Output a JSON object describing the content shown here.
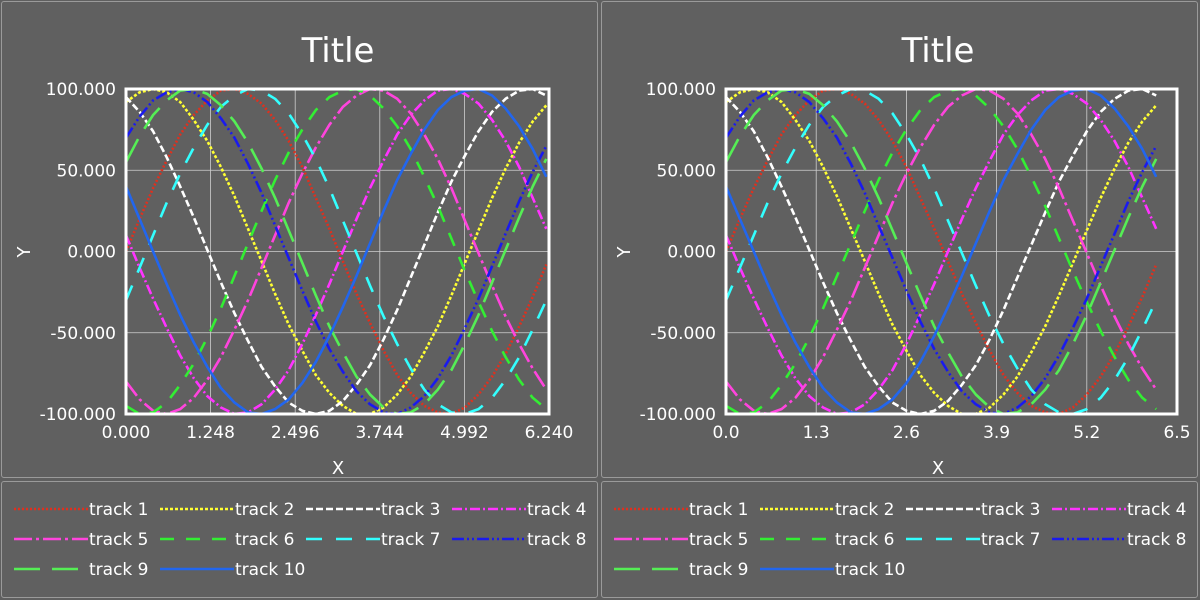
{
  "colors": {
    "background": "#606060",
    "panel_border": "#9a9a9a",
    "axis": "#ffffff",
    "grid": "#cfcfcf",
    "text": "#ffffff"
  },
  "chart_data": [
    {
      "type": "line",
      "title": "Title",
      "xlabel": "X",
      "ylabel": "Y",
      "xlim": [
        0,
        6.24
      ],
      "ylim": [
        -100,
        100
      ],
      "xticks": [
        "0.000",
        "1.248",
        "2.496",
        "3.744",
        "4.992",
        "6.240"
      ],
      "yticks": [
        "-100.000",
        "-50.000",
        "0.000",
        "50.000",
        "100.000"
      ],
      "xtick_values": [
        0,
        1.248,
        2.496,
        3.744,
        4.992,
        6.24
      ],
      "ytick_values": [
        -100,
        -50,
        0,
        50,
        100
      ],
      "grid": true,
      "legend_position": "bottom",
      "x": [
        0,
        0.2,
        0.4,
        0.6,
        0.8,
        1.0,
        1.2,
        1.4,
        1.6,
        1.8,
        2.0,
        2.2,
        2.4,
        2.6,
        2.8,
        3.0,
        3.2,
        3.4,
        3.6,
        3.8,
        4.0,
        4.2,
        4.4,
        4.6,
        4.8,
        5.0,
        5.2,
        5.4,
        5.6,
        5.8,
        6.0,
        6.2
      ],
      "series": [
        {
          "name": "track 1",
          "color": "#e0301e",
          "dash": "2,2",
          "values": [
            0,
            20,
            39,
            56,
            72,
            84,
            93,
            99,
            100,
            97,
            91,
            81,
            68,
            52,
            33,
            14,
            -6,
            -26,
            -44,
            -61,
            -76,
            -87,
            -95,
            -99,
            -100,
            -96,
            -88,
            -77,
            -63,
            -46,
            -28,
            -8
          ]
        },
        {
          "name": "track 2",
          "color": "#ffff33",
          "dash": "3,2",
          "values": [
            92,
            98,
            100,
            98,
            92,
            81,
            68,
            52,
            34,
            14,
            -6,
            -26,
            -45,
            -61,
            -76,
            -87,
            -95,
            -100,
            -100,
            -96,
            -88,
            -77,
            -62,
            -46,
            -27,
            -7,
            13,
            33,
            51,
            67,
            80,
            90
          ]
        },
        {
          "name": "track 3",
          "color": "#ffffff",
          "dash": "7,3",
          "values": [
            95,
            86,
            74,
            58,
            40,
            21,
            1,
            -19,
            -38,
            -55,
            -71,
            -83,
            -93,
            -98,
            -100,
            -98,
            -92,
            -82,
            -70,
            -54,
            -36,
            -16,
            4,
            24,
            43,
            59,
            74,
            86,
            94,
            99,
            100,
            96
          ]
        },
        {
          "name": "track 4",
          "color": "#ff33ff",
          "dash": "10,3,2,3",
          "values": [
            10,
            -10,
            -29,
            -47,
            -64,
            -78,
            -89,
            -96,
            -100,
            -99,
            -94,
            -85,
            -73,
            -57,
            -39,
            -20,
            0,
            20,
            39,
            56,
            72,
            84,
            93,
            99,
            100,
            97,
            91,
            81,
            68,
            52,
            33,
            14
          ]
        },
        {
          "name": "track 5",
          "color": "#ff44dd",
          "dash": "18,4,3,4",
          "values": [
            -80,
            -91,
            -98,
            -100,
            -97,
            -90,
            -79,
            -65,
            -48,
            -30,
            -10,
            10,
            30,
            48,
            64,
            78,
            89,
            96,
            100,
            99,
            94,
            85,
            72,
            57,
            39,
            19,
            -1,
            -21,
            -40,
            -57,
            -72,
            -85
          ]
        },
        {
          "name": "track 6",
          "color": "#33ee33",
          "dash": "14,12",
          "values": [
            -95,
            -100,
            -99,
            -93,
            -82,
            -69,
            -53,
            -35,
            -15,
            5,
            25,
            44,
            61,
            75,
            87,
            95,
            99,
            100,
            96,
            88,
            77,
            63,
            46,
            28,
            8,
            -12,
            -31,
            -49,
            -65,
            -79,
            -90,
            -97
          ]
        },
        {
          "name": "track 7",
          "color": "#33ffff",
          "dash": "16,14",
          "values": [
            -30,
            -10,
            10,
            30,
            48,
            64,
            78,
            89,
            96,
            100,
            99,
            94,
            85,
            72,
            57,
            39,
            19,
            -1,
            -21,
            -40,
            -57,
            -72,
            -85,
            -94,
            -99,
            -100,
            -97,
            -90,
            -79,
            -65,
            -48,
            -30
          ]
        },
        {
          "name": "track 8",
          "color": "#1a1aee",
          "dash": "12,3,2,3,2,3",
          "values": [
            70,
            83,
            93,
            98,
            100,
            98,
            92,
            82,
            70,
            54,
            36,
            16,
            -4,
            -24,
            -43,
            -60,
            -74,
            -86,
            -94,
            -99,
            -100,
            -96,
            -89,
            -78,
            -64,
            -47,
            -29,
            -9,
            11,
            31,
            49,
            65
          ]
        },
        {
          "name": "track 9",
          "color": "#55ee55",
          "dash": "26,12",
          "values": [
            55,
            71,
            84,
            93,
            99,
            100,
            97,
            90,
            80,
            67,
            51,
            33,
            13,
            -7,
            -27,
            -46,
            -62,
            -77,
            -88,
            -96,
            -100,
            -99,
            -94,
            -85,
            -73,
            -57,
            -39,
            -19,
            1,
            21,
            40,
            57
          ]
        },
        {
          "name": "track 10",
          "color": "#2266ee",
          "dash": "",
          "values": [
            40,
            20,
            0,
            -20,
            -39,
            -56,
            -71,
            -84,
            -93,
            -99,
            -100,
            -97,
            -91,
            -81,
            -68,
            -52,
            -34,
            -15,
            5,
            25,
            44,
            60,
            75,
            87,
            95,
            99,
            100,
            96,
            88,
            77,
            63,
            46
          ]
        }
      ]
    },
    {
      "type": "line",
      "title": "Title",
      "xlabel": "X",
      "ylabel": "Y",
      "xlim": [
        0,
        6.5
      ],
      "ylim": [
        -100,
        100
      ],
      "xticks": [
        "0.0",
        "1.3",
        "2.6",
        "3.9",
        "5.2",
        "6.5"
      ],
      "yticks": [
        "-100.000",
        "-50.000",
        "0.000",
        "50.000",
        "100.000"
      ],
      "xtick_values": [
        0,
        1.3,
        2.6,
        3.9,
        5.2,
        6.5
      ],
      "ytick_values": [
        -100,
        -50,
        0,
        50,
        100
      ],
      "grid": true,
      "legend_position": "bottom",
      "x": [
        0,
        0.2,
        0.4,
        0.6,
        0.8,
        1.0,
        1.2,
        1.4,
        1.6,
        1.8,
        2.0,
        2.2,
        2.4,
        2.6,
        2.8,
        3.0,
        3.2,
        3.4,
        3.6,
        3.8,
        4.0,
        4.2,
        4.4,
        4.6,
        4.8,
        5.0,
        5.2,
        5.4,
        5.6,
        5.8,
        6.0,
        6.2
      ],
      "series": [
        {
          "name": "track 1",
          "color": "#e0301e",
          "dash": "2,2",
          "values": [
            0,
            20,
            39,
            56,
            72,
            84,
            93,
            99,
            100,
            97,
            91,
            81,
            68,
            52,
            33,
            14,
            -6,
            -26,
            -44,
            -61,
            -76,
            -87,
            -95,
            -99,
            -100,
            -96,
            -88,
            -77,
            -63,
            -46,
            -28,
            -8
          ]
        },
        {
          "name": "track 2",
          "color": "#ffff33",
          "dash": "3,2",
          "values": [
            92,
            98,
            100,
            98,
            92,
            81,
            68,
            52,
            34,
            14,
            -6,
            -26,
            -45,
            -61,
            -76,
            -87,
            -95,
            -100,
            -100,
            -96,
            -88,
            -77,
            -62,
            -46,
            -27,
            -7,
            13,
            33,
            51,
            67,
            80,
            90
          ]
        },
        {
          "name": "track 3",
          "color": "#ffffff",
          "dash": "7,3",
          "values": [
            95,
            86,
            74,
            58,
            40,
            21,
            1,
            -19,
            -38,
            -55,
            -71,
            -83,
            -93,
            -98,
            -100,
            -98,
            -92,
            -82,
            -70,
            -54,
            -36,
            -16,
            4,
            24,
            43,
            59,
            74,
            86,
            94,
            99,
            100,
            96
          ]
        },
        {
          "name": "track 4",
          "color": "#ff33ff",
          "dash": "10,3,2,3",
          "values": [
            10,
            -10,
            -29,
            -47,
            -64,
            -78,
            -89,
            -96,
            -100,
            -99,
            -94,
            -85,
            -73,
            -57,
            -39,
            -20,
            0,
            20,
            39,
            56,
            72,
            84,
            93,
            99,
            100,
            97,
            91,
            81,
            68,
            52,
            33,
            14
          ]
        },
        {
          "name": "track 5",
          "color": "#ff44dd",
          "dash": "18,4,3,4",
          "values": [
            -80,
            -91,
            -98,
            -100,
            -97,
            -90,
            -79,
            -65,
            -48,
            -30,
            -10,
            10,
            30,
            48,
            64,
            78,
            89,
            96,
            100,
            99,
            94,
            85,
            72,
            57,
            39,
            19,
            -1,
            -21,
            -40,
            -57,
            -72,
            -85
          ]
        },
        {
          "name": "track 6",
          "color": "#33ee33",
          "dash": "14,12",
          "values": [
            -95,
            -100,
            -99,
            -93,
            -82,
            -69,
            -53,
            -35,
            -15,
            5,
            25,
            44,
            61,
            75,
            87,
            95,
            99,
            100,
            96,
            88,
            77,
            63,
            46,
            28,
            8,
            -12,
            -31,
            -49,
            -65,
            -79,
            -90,
            -97
          ]
        },
        {
          "name": "track 7",
          "color": "#33ffff",
          "dash": "16,14",
          "values": [
            -30,
            -10,
            10,
            30,
            48,
            64,
            78,
            89,
            96,
            100,
            99,
            94,
            85,
            72,
            57,
            39,
            19,
            -1,
            -21,
            -40,
            -57,
            -72,
            -85,
            -94,
            -99,
            -100,
            -97,
            -90,
            -79,
            -65,
            -48,
            -30
          ]
        },
        {
          "name": "track 8",
          "color": "#1a1aee",
          "dash": "12,3,2,3,2,3",
          "values": [
            70,
            83,
            93,
            98,
            100,
            98,
            92,
            82,
            70,
            54,
            36,
            16,
            -4,
            -24,
            -43,
            -60,
            -74,
            -86,
            -94,
            -99,
            -100,
            -96,
            -89,
            -78,
            -64,
            -47,
            -29,
            -9,
            11,
            31,
            49,
            65
          ]
        },
        {
          "name": "track 9",
          "color": "#55ee55",
          "dash": "26,12",
          "values": [
            55,
            71,
            84,
            93,
            99,
            100,
            97,
            90,
            80,
            67,
            51,
            33,
            13,
            -7,
            -27,
            -46,
            -62,
            -77,
            -88,
            -96,
            -100,
            -99,
            -94,
            -85,
            -73,
            -57,
            -39,
            -19,
            1,
            21,
            40,
            57
          ]
        },
        {
          "name": "track 10",
          "color": "#2266ee",
          "dash": "",
          "values": [
            40,
            20,
            0,
            -20,
            -39,
            -56,
            -71,
            -84,
            -93,
            -99,
            -100,
            -97,
            -91,
            -81,
            -68,
            -52,
            -34,
            -15,
            5,
            25,
            44,
            60,
            75,
            87,
            95,
            99,
            100,
            96,
            88,
            77,
            63,
            46
          ]
        }
      ]
    }
  ]
}
